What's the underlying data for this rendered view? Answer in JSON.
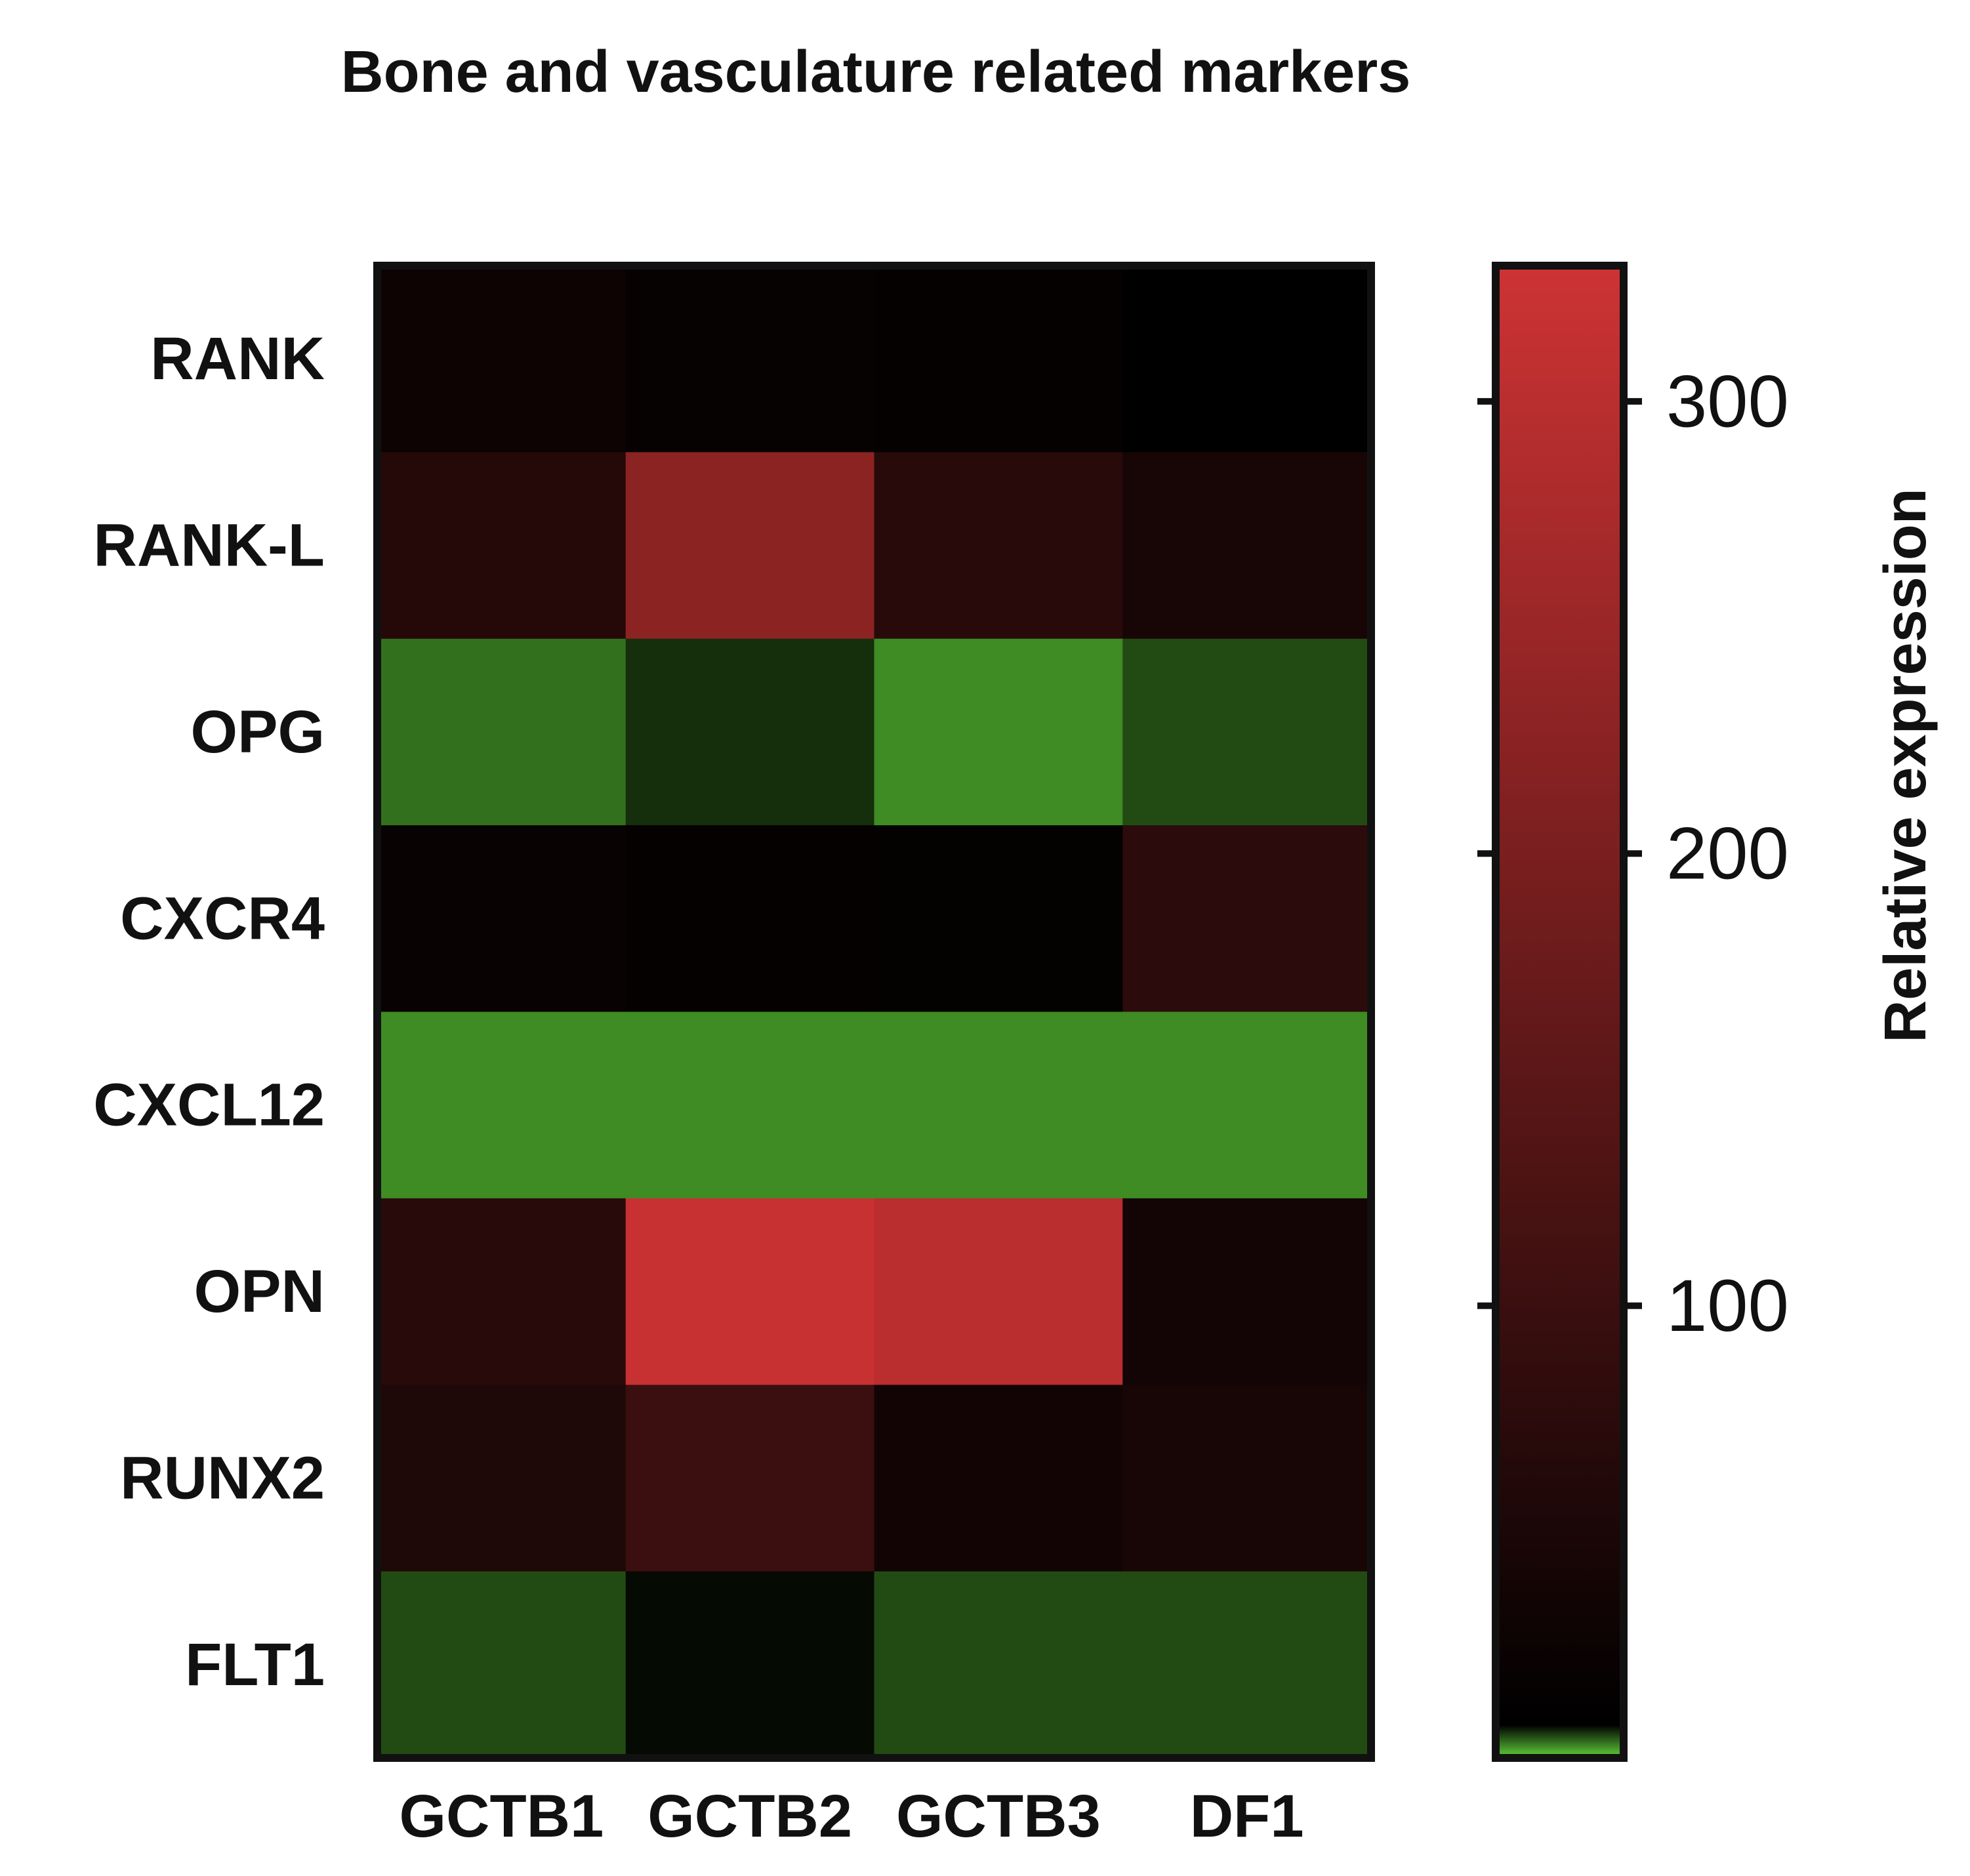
{
  "chart_data": {
    "type": "heatmap",
    "title": "Bone and vasculature related markers",
    "rows": [
      "RANK",
      "RANK-L",
      "OPG",
      "CXCR4",
      "CXCL12",
      "OPN",
      "RUNX2",
      "FLT1"
    ],
    "columns": [
      "GCTB1",
      "GCTB2",
      "GCTB3",
      "DF1"
    ],
    "values": [
      [
        22,
        12,
        10,
        1
      ],
      [
        60,
        225,
        65,
        40
      ],
      [
        0.2,
        0.6,
        0.1,
        0.4
      ],
      [
        14,
        10,
        7,
        70
      ],
      [
        0.1,
        0.1,
        0.1,
        0.1
      ],
      [
        65,
        320,
        300,
        32
      ],
      [
        50,
        95,
        30,
        40
      ],
      [
        0.4,
        0.9,
        0.4,
        0.4
      ]
    ],
    "colorbar": {
      "label": "Relative expression",
      "min": 0,
      "max": 330,
      "ticks": [
        100,
        200,
        300
      ],
      "low_color": "#5ccb35",
      "mid_color": "#000000",
      "high_color": "#cd3334"
    }
  }
}
